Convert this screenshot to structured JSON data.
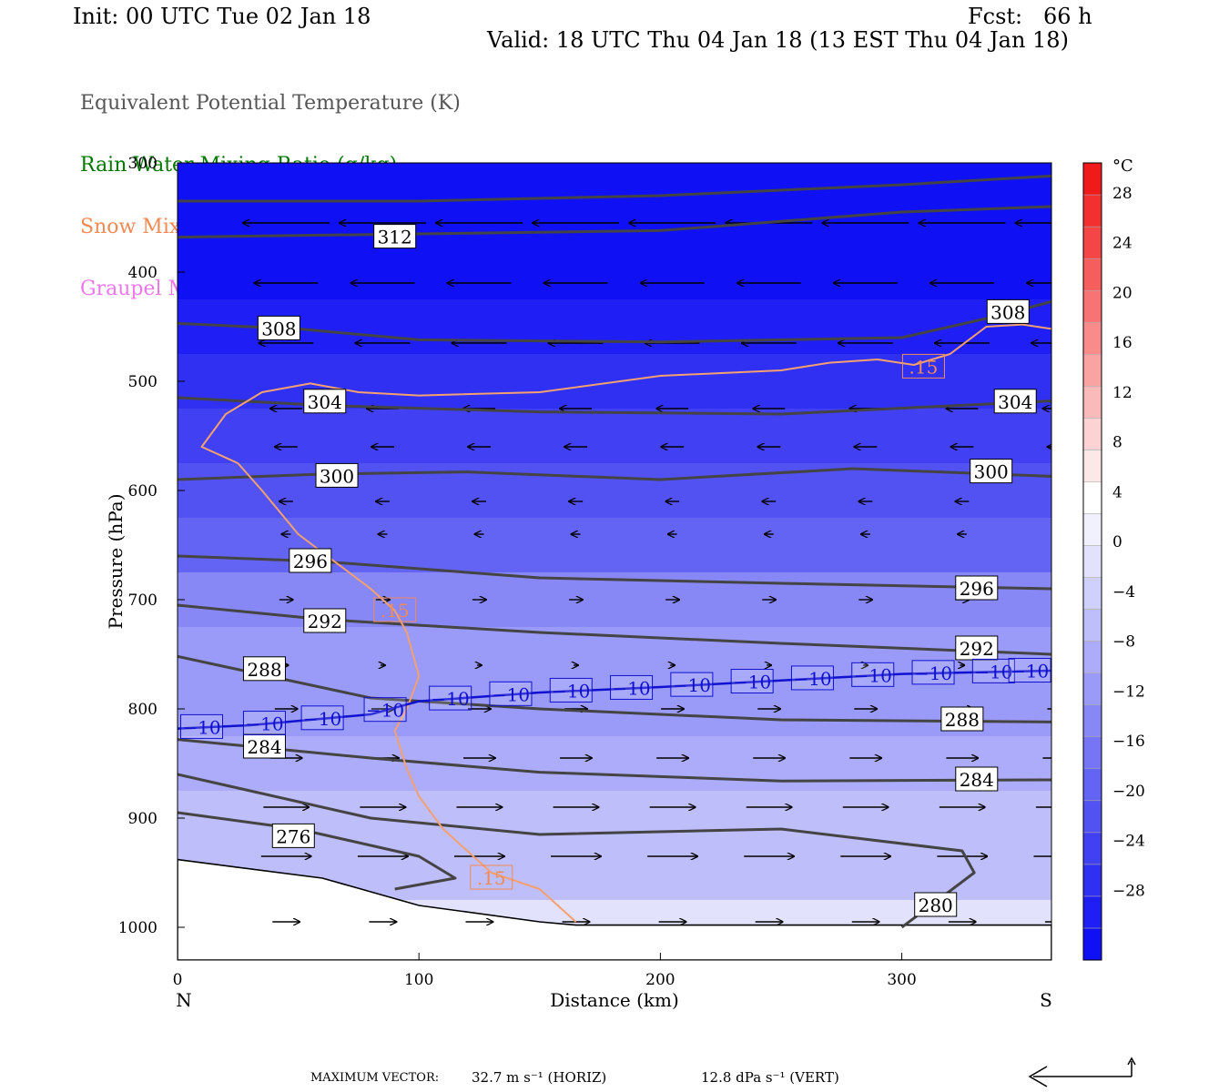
{
  "header": {
    "init": "Init: 00 UTC Tue 02 Jan 18",
    "fcst": "Fcst:   66 h",
    "valid": "Valid: 18 UTC Thu 04 Jan 18 (13 EST Thu 04 Jan 18)"
  },
  "variables": [
    {
      "label": "Equivalent Potential Temperature (K)",
      "color": "#555555"
    },
    {
      "label": "Rain Water Mixing Ratio (g/kg)",
      "color": "#007700"
    },
    {
      "label": "Snow Mixing Ratio (g/kg)",
      "color": "#f28a55"
    },
    {
      "label": "Graupel Mixing Ratio (g/kg)",
      "color": "#ee77ee"
    }
  ],
  "footer": {
    "label": "MAXIMUM VECTOR:",
    "horiz": "32.7 m s⁻¹ (HORIZ)",
    "vert": "12.8 dPa s⁻¹ (VERT)"
  },
  "chart_data": {
    "type": "heatmap",
    "xlabel": "Distance (km)",
    "ylabel": "Pressure (hPa)",
    "xlim": [
      0,
      362
    ],
    "ylim": [
      1030,
      300
    ],
    "x_ticks": [
      0,
      100,
      200,
      300
    ],
    "y_ticks": [
      300,
      400,
      500,
      600,
      700,
      800,
      900,
      1000
    ],
    "x_end_labels": {
      "left": "N",
      "right": "S"
    },
    "colorbar": {
      "unit": "°C",
      "ticks": [
        28,
        24,
        20,
        16,
        12,
        8,
        4,
        0,
        -4,
        -8,
        -12,
        -16,
        -20,
        -24,
        -28
      ],
      "range": [
        -32,
        32
      ],
      "colors": [
        "#1010f5",
        "#1f1ff5",
        "#3030f3",
        "#4141f3",
        "#5252f3",
        "#6464f4",
        "#7575f5",
        "#8787f6",
        "#9a9af8",
        "#acacfa",
        "#bebefb",
        "#d0d0fc",
        "#e2e2fd",
        "#f1f1fe",
        "#ffffff",
        "#fde8e8",
        "#fcd2d2",
        "#fbbaba",
        "#faa3a3",
        "#f98b8b",
        "#f87474",
        "#f65e5e",
        "#f44646",
        "#f23030",
        "#f01a1a"
      ]
    },
    "temperature_shading": [
      {
        "p": 320,
        "t": -31
      },
      {
        "p": 400,
        "t": -31
      },
      {
        "p": 450,
        "t": -28
      },
      {
        "p": 500,
        "t": -26
      },
      {
        "p": 550,
        "t": -23
      },
      {
        "p": 600,
        "t": -20
      },
      {
        "p": 650,
        "t": -17
      },
      {
        "p": 700,
        "t": -14
      },
      {
        "p": 750,
        "t": -11
      },
      {
        "p": 800,
        "t": -10
      },
      {
        "p": 850,
        "t": -8
      },
      {
        "p": 900,
        "t": -6
      },
      {
        "p": 950,
        "t": -4
      },
      {
        "p": 1000,
        "t": -1
      }
    ],
    "theta_e_contours": [
      {
        "value": 312,
        "x": [
          0,
          100,
          200,
          300,
          362
        ],
        "p": [
          335,
          335,
          330,
          320,
          312
        ],
        "labels": [
          {
            "x": 90,
            "p": 368
          }
        ]
      },
      {
        "value": 312,
        "x": [
          0,
          100,
          200,
          300,
          362
        ],
        "p": [
          368,
          365,
          362,
          345,
          340
        ],
        "labels": []
      },
      {
        "value": 308,
        "x": [
          0,
          50,
          100,
          200,
          300,
          340,
          362
        ],
        "p": [
          447,
          452,
          462,
          464,
          460,
          440,
          427
        ],
        "labels": [
          {
            "x": 42,
            "p": 452
          },
          {
            "x": 344,
            "p": 437
          }
        ]
      },
      {
        "value": 304,
        "x": [
          0,
          60,
          150,
          250,
          362
        ],
        "p": [
          515,
          522,
          528,
          530,
          518
        ],
        "labels": [
          {
            "x": 61,
            "p": 519
          },
          {
            "x": 347,
            "p": 519
          }
        ]
      },
      {
        "value": 300,
        "x": [
          0,
          60,
          120,
          200,
          280,
          362
        ],
        "p": [
          590,
          585,
          583,
          590,
          580,
          587
        ],
        "labels": [
          {
            "x": 66,
            "p": 587
          },
          {
            "x": 337,
            "p": 583
          }
        ]
      },
      {
        "value": 296,
        "x": [
          0,
          60,
          150,
          250,
          362
        ],
        "p": [
          660,
          665,
          680,
          685,
          690
        ],
        "labels": [
          {
            "x": 55,
            "p": 665
          },
          {
            "x": 331,
            "p": 690
          }
        ]
      },
      {
        "value": 292,
        "x": [
          0,
          60,
          150,
          250,
          362
        ],
        "p": [
          705,
          718,
          730,
          740,
          750
        ],
        "labels": [
          {
            "x": 61,
            "p": 720
          },
          {
            "x": 331,
            "p": 745
          }
        ]
      },
      {
        "value": 288,
        "x": [
          0,
          80,
          150,
          250,
          362
        ],
        "p": [
          752,
          790,
          800,
          810,
          812
        ],
        "labels": [
          {
            "x": 36,
            "p": 764
          },
          {
            "x": 325,
            "p": 810
          }
        ]
      },
      {
        "value": 284,
        "x": [
          0,
          80,
          150,
          250,
          362
        ],
        "p": [
          828,
          845,
          858,
          866,
          865
        ],
        "labels": [
          {
            "x": 36,
            "p": 835
          },
          {
            "x": 331,
            "p": 865
          }
        ]
      },
      {
        "value": 280,
        "x": [
          0,
          80,
          150,
          250,
          325,
          330,
          300
        ],
        "p": [
          860,
          900,
          915,
          910,
          930,
          950,
          1000
        ],
        "labels": [
          {
            "x": 314,
            "p": 980
          }
        ]
      },
      {
        "value": 276,
        "x": [
          0,
          50,
          100,
          115,
          90
        ],
        "p": [
          895,
          910,
          935,
          955,
          965
        ],
        "labels": [
          {
            "x": 48,
            "p": 917
          }
        ]
      }
    ],
    "temperature_minus10_line": {
      "value": -10,
      "x": [
        0,
        30,
        80,
        100,
        150,
        200,
        250,
        300,
        362
      ],
      "p": [
        818,
        815,
        805,
        793,
        785,
        780,
        774,
        768,
        765
      ],
      "labels": [
        "−10",
        "−10",
        "−10",
        "−10",
        "−10",
        "−10",
        "−10",
        "−10",
        "−10",
        "−10",
        "−10",
        "−10",
        "−10",
        "−10",
        "−10",
        "−10",
        "−10"
      ]
    },
    "snow_015_contour": {
      "value": ".15",
      "x": [
        165,
        150,
        130,
        110,
        100,
        95,
        90,
        95,
        100,
        95,
        90,
        80,
        65,
        50,
        35,
        25,
        10,
        20,
        35,
        55,
        75,
        100,
        150,
        200,
        250,
        270,
        290,
        305,
        320,
        335,
        350,
        362
      ],
      "p": [
        995,
        965,
        950,
        910,
        880,
        855,
        820,
        800,
        770,
        730,
        710,
        690,
        665,
        640,
        600,
        575,
        560,
        530,
        510,
        502,
        510,
        513,
        510,
        495,
        490,
        483,
        480,
        485,
        475,
        450,
        448,
        452
      ],
      "labels": [
        {
          "x": 90,
          "p": 710
        },
        {
          "x": 130,
          "p": 955
        },
        {
          "x": 309,
          "p": 487
        }
      ]
    },
    "wind_vectors": "northerly flow aloft (leftward arrows), southerly flow near surface (rightward arrows)",
    "terrain": {
      "x": [
        0,
        60,
        100,
        150,
        165,
        200,
        362
      ],
      "p": [
        938,
        955,
        980,
        995,
        998,
        998,
        998
      ]
    }
  }
}
